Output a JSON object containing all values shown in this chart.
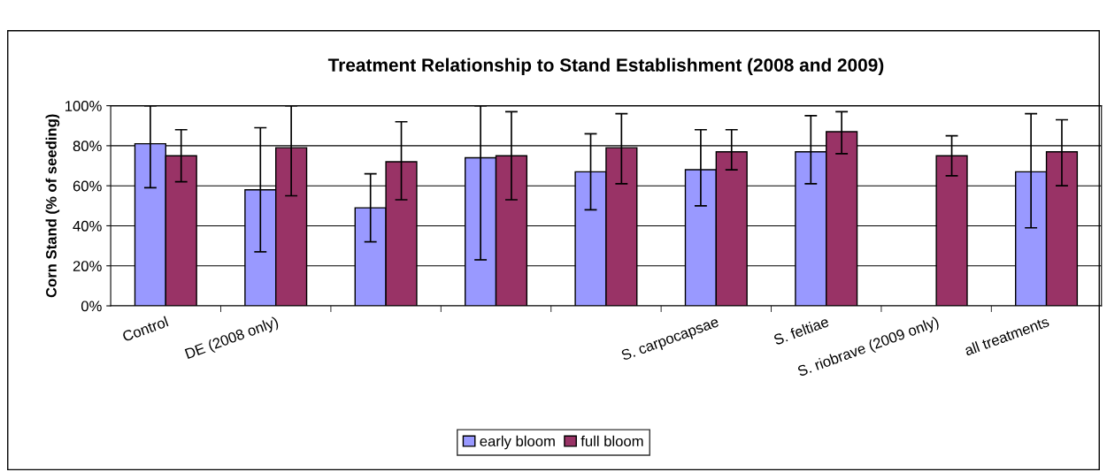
{
  "chart_data": {
    "type": "bar",
    "title": "Treatment Relationship to Stand Establishment (2008 and 2009)",
    "ylabel": "Corn Stand (% of seeding)",
    "categories": [
      "Control",
      "DE (2008 only)",
      null,
      null,
      null,
      "S. carpocapsae",
      "S. feltiae",
      "S. riobrave (2009 only)",
      "all treatments"
    ],
    "series": [
      {
        "name": "early bloom",
        "color": "#9999ff",
        "values": [
          81,
          58,
          49,
          74,
          67,
          68,
          77,
          null,
          67
        ],
        "errors": [
          [
            59,
            100
          ],
          [
            27,
            89
          ],
          [
            32,
            66
          ],
          [
            23,
            100
          ],
          [
            48,
            86
          ],
          [
            50,
            88
          ],
          [
            61,
            95
          ],
          null,
          [
            39,
            96
          ]
        ]
      },
      {
        "name": "full bloom",
        "color": "#993366",
        "values": [
          75,
          79,
          72,
          75,
          79,
          77,
          87,
          75,
          77
        ],
        "errors": [
          [
            62,
            88
          ],
          [
            55,
            100
          ],
          [
            53,
            92
          ],
          [
            53,
            97
          ],
          [
            61,
            96
          ],
          [
            68,
            88
          ],
          [
            76,
            97
          ],
          [
            65,
            85
          ],
          [
            60,
            93
          ]
        ]
      }
    ],
    "ylim": [
      0,
      100
    ],
    "yticks": [
      {
        "value": 0,
        "label": "0%"
      },
      {
        "value": 20,
        "label": "20%"
      },
      {
        "value": 40,
        "label": "40%"
      },
      {
        "value": 60,
        "label": "60%"
      },
      {
        "value": 80,
        "label": "80%"
      },
      {
        "value": 100,
        "label": "100%"
      }
    ],
    "grid": "y",
    "legend": "bottom"
  }
}
